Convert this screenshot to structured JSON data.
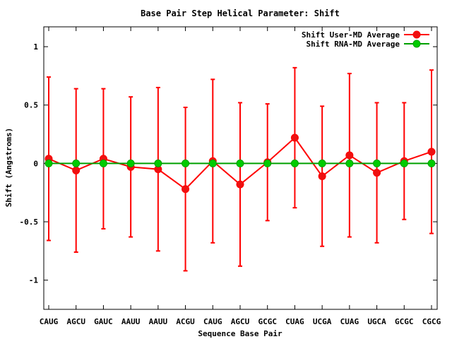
{
  "chart_data": {
    "type": "line",
    "title": "Base Pair Step Helical Parameter: Shift",
    "xlabel": "Sequence Base Pair",
    "ylabel": "Shift (Angstroms)",
    "ylim": [
      -1.25,
      1.17
    ],
    "yticks": [
      -1,
      -0.5,
      0,
      0.5,
      1
    ],
    "ytick_labels": [
      "-1",
      "-0.5",
      "0",
      "0.5",
      "1"
    ],
    "grid": false,
    "legend_position": "top-right",
    "categories": [
      "CAUG",
      "AGCU",
      "GAUC",
      "AAUU",
      "AAUU",
      "ACGU",
      "CAUG",
      "AGCU",
      "GCGC",
      "CUAG",
      "UCGA",
      "CUAG",
      "UGCA",
      "GCGC",
      "CGCG"
    ],
    "series": [
      {
        "name": "Shift User-MD Average",
        "color": "#ff0000",
        "marker_color": "#ee1111",
        "values": [
          0.04,
          -0.06,
          0.04,
          -0.03,
          -0.05,
          -0.22,
          0.02,
          -0.18,
          0.01,
          0.22,
          -0.11,
          0.07,
          -0.08,
          0.02,
          0.1
        ],
        "error_high": [
          0.74,
          0.64,
          0.64,
          0.57,
          0.65,
          0.48,
          0.72,
          0.52,
          0.51,
          0.82,
          0.49,
          0.77,
          0.52,
          0.52,
          0.8
        ],
        "error_low": [
          -0.66,
          -0.76,
          -0.56,
          -0.63,
          -0.75,
          -0.92,
          -0.68,
          -0.88,
          -0.49,
          -0.38,
          -0.71,
          -0.63,
          -0.68,
          -0.48,
          -0.6
        ]
      },
      {
        "name": "Shift RNA-MD Average",
        "color": "#00a000",
        "marker_color": "#00cc00",
        "values": [
          0,
          0,
          0,
          0,
          0,
          0,
          0,
          0,
          0,
          0,
          0,
          0,
          0,
          0,
          0
        ]
      }
    ]
  }
}
